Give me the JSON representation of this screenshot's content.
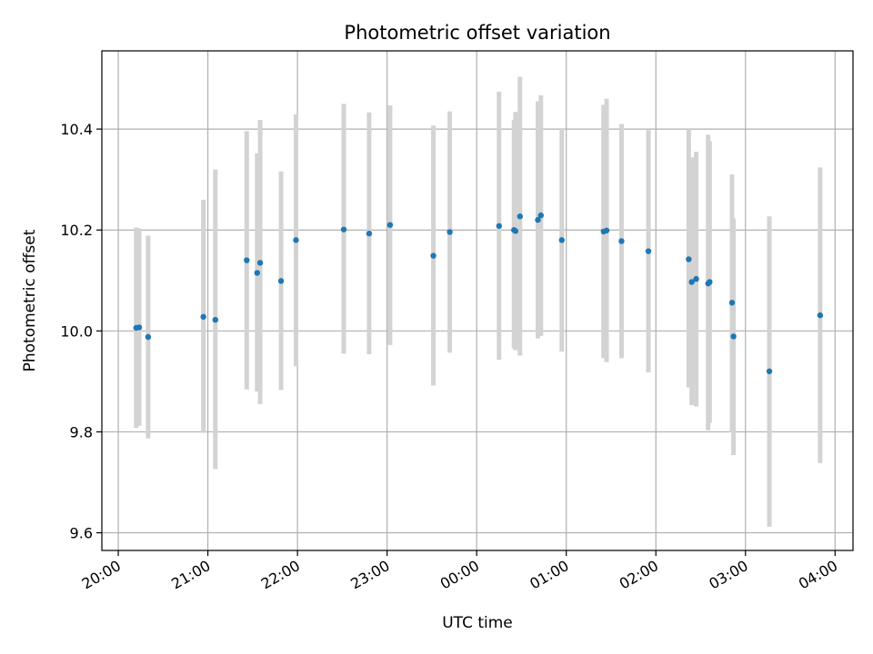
{
  "chart_data": {
    "type": "scatter",
    "title": "Photometric offset variation",
    "xlabel": "UTC time",
    "ylabel": "Photometric offset",
    "x_tick_labels": [
      "20:00",
      "21:00",
      "22:00",
      "23:00",
      "00:00",
      "01:00",
      "02:00",
      "03:00",
      "04:00"
    ],
    "y_tick_labels": [
      "9.6",
      "9.8",
      "10.0",
      "10.2",
      "10.4"
    ],
    "xlim": [
      "19:49",
      "04:12"
    ],
    "ylim": [
      9.565,
      10.555
    ],
    "grid": true,
    "marker_color": "#1f77b4",
    "errorbar_color": "#d3d3d3",
    "points": [
      {
        "t": "20:12",
        "y": 10.006,
        "lo": 9.808,
        "hi": 10.205
      },
      {
        "t": "20:14",
        "y": 10.007,
        "lo": 9.812,
        "hi": 10.203
      },
      {
        "t": "20:20",
        "y": 9.988,
        "lo": 9.787,
        "hi": 10.189
      },
      {
        "t": "20:57",
        "y": 10.028,
        "lo": 9.798,
        "hi": 10.26
      },
      {
        "t": "21:05",
        "y": 10.022,
        "lo": 9.726,
        "hi": 10.32
      },
      {
        "t": "21:26",
        "y": 10.14,
        "lo": 9.884,
        "hi": 10.396
      },
      {
        "t": "21:33",
        "y": 10.115,
        "lo": 9.88,
        "hi": 10.352
      },
      {
        "t": "21:35",
        "y": 10.135,
        "lo": 9.855,
        "hi": 10.418
      },
      {
        "t": "21:49",
        "y": 10.099,
        "lo": 9.883,
        "hi": 10.316
      },
      {
        "t": "21:59",
        "y": 10.18,
        "lo": 9.93,
        "hi": 10.429
      },
      {
        "t": "22:31",
        "y": 10.201,
        "lo": 9.955,
        "hi": 10.45
      },
      {
        "t": "22:48",
        "y": 10.193,
        "lo": 9.954,
        "hi": 10.433
      },
      {
        "t": "23:02",
        "y": 10.21,
        "lo": 9.972,
        "hi": 10.447
      },
      {
        "t": "23:31",
        "y": 10.149,
        "lo": 9.892,
        "hi": 10.407
      },
      {
        "t": "23:42",
        "y": 10.196,
        "lo": 9.957,
        "hi": 10.435
      },
      {
        "t": "00:15",
        "y": 10.208,
        "lo": 9.943,
        "hi": 10.474
      },
      {
        "t": "00:25",
        "y": 10.2,
        "lo": 9.966,
        "hi": 10.418
      },
      {
        "t": "00:26",
        "y": 10.198,
        "lo": 9.962,
        "hi": 10.434
      },
      {
        "t": "00:29",
        "y": 10.227,
        "lo": 9.951,
        "hi": 10.504
      },
      {
        "t": "00:41",
        "y": 10.22,
        "lo": 9.985,
        "hi": 10.455
      },
      {
        "t": "00:43",
        "y": 10.229,
        "lo": 9.99,
        "hi": 10.467
      },
      {
        "t": "00:57",
        "y": 10.18,
        "lo": 9.959,
        "hi": 10.402
      },
      {
        "t": "01:25",
        "y": 10.197,
        "lo": 9.946,
        "hi": 10.448
      },
      {
        "t": "01:27",
        "y": 10.199,
        "lo": 9.938,
        "hi": 10.46
      },
      {
        "t": "01:37",
        "y": 10.178,
        "lo": 9.946,
        "hi": 10.41
      },
      {
        "t": "01:55",
        "y": 10.158,
        "lo": 9.918,
        "hi": 10.398
      },
      {
        "t": "02:22",
        "y": 10.142,
        "lo": 9.888,
        "hi": 10.4
      },
      {
        "t": "02:24",
        "y": 10.097,
        "lo": 9.853,
        "hi": 10.344
      },
      {
        "t": "02:27",
        "y": 10.103,
        "lo": 9.85,
        "hi": 10.355
      },
      {
        "t": "02:35",
        "y": 10.094,
        "lo": 9.803,
        "hi": 10.389
      },
      {
        "t": "02:36",
        "y": 10.097,
        "lo": 9.818,
        "hi": 10.376
      },
      {
        "t": "02:51",
        "y": 10.056,
        "lo": 9.799,
        "hi": 10.31
      },
      {
        "t": "02:52",
        "y": 9.989,
        "lo": 9.754,
        "hi": 10.223
      },
      {
        "t": "03:16",
        "y": 9.92,
        "lo": 9.612,
        "hi": 10.227
      },
      {
        "t": "03:50",
        "y": 10.031,
        "lo": 9.738,
        "hi": 10.324
      }
    ]
  }
}
